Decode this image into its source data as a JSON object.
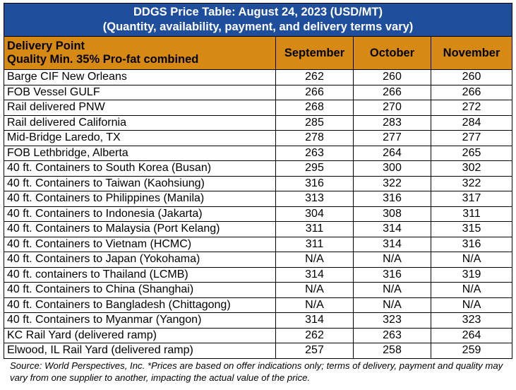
{
  "title": {
    "bold": "DDGS Price Table: August 24, 2023",
    "unit": " (USD/MT)",
    "subtitle": "(Quantity, availability, payment, and delivery terms vary)"
  },
  "header": {
    "col0_line1": "Delivery Point",
    "col0_line2": "Quality Min. 35% Pro-fat combined",
    "months": [
      "September",
      "October",
      "November"
    ]
  },
  "rows": [
    {
      "label": "Barge CIF New Orleans",
      "v": [
        "262",
        "260",
        "260"
      ]
    },
    {
      "label": "FOB Vessel GULF",
      "v": [
        "266",
        "266",
        "266"
      ]
    },
    {
      "label": "Rail delivered PNW",
      "v": [
        "268",
        "270",
        "272"
      ]
    },
    {
      "label": "Rail delivered California",
      "v": [
        "285",
        "283",
        "284"
      ]
    },
    {
      "label": "Mid-Bridge Laredo, TX",
      "v": [
        "278",
        "277",
        "277"
      ]
    },
    {
      "label": "FOB Lethbridge, Alberta",
      "v": [
        "263",
        "264",
        "265"
      ]
    },
    {
      "label": "40 ft. Containers to South Korea (Busan)",
      "v": [
        "295",
        "300",
        "302"
      ]
    },
    {
      "label": "40 ft. Containers to Taiwan (Kaohsiung)",
      "v": [
        "316",
        "322",
        "322"
      ]
    },
    {
      "label": "40 ft. Containers to Philippines (Manila)",
      "v": [
        "313",
        "316",
        "317"
      ]
    },
    {
      "label": "40 ft. Containers to Indonesia (Jakarta)",
      "v": [
        "304",
        "308",
        "311"
      ]
    },
    {
      "label": "40 ft. Containers to Malaysia (Port Kelang)",
      "v": [
        "311",
        "314",
        "315"
      ]
    },
    {
      "label": "40 ft. Containers to Vietnam (HCMC)",
      "v": [
        "311",
        "314",
        "316"
      ]
    },
    {
      "label": "40 ft. Containers to Japan (Yokohama)",
      "v": [
        "N/A",
        "N/A",
        "N/A"
      ]
    },
    {
      "label": "40 ft. containers to Thailand (LCMB)",
      "v": [
        "314",
        "316",
        "319"
      ]
    },
    {
      "label": "40 ft. Containers to China (Shanghai)",
      "v": [
        "N/A",
        "N/A",
        "N/A"
      ]
    },
    {
      "label": "40 ft. Containers to Bangladesh (Chittagong)",
      "v": [
        "N/A",
        "N/A",
        "N/A"
      ]
    },
    {
      "label": "40 ft. Containers to Myanmar (Yangon)",
      "v": [
        "314",
        "323",
        "323"
      ]
    },
    {
      "label": "KC Rail Yard (delivered ramp)",
      "v": [
        "262",
        "263",
        "264"
      ]
    },
    {
      "label": "Elwood, IL Rail Yard (delivered ramp)",
      "v": [
        "257",
        "258",
        "259"
      ]
    }
  ],
  "footnote": "Source: World Perspectives, Inc. *Prices are based on offer indications only; terms of delivery, payment and quality may vary from one supplier to another, impacting the actual value of the price."
}
